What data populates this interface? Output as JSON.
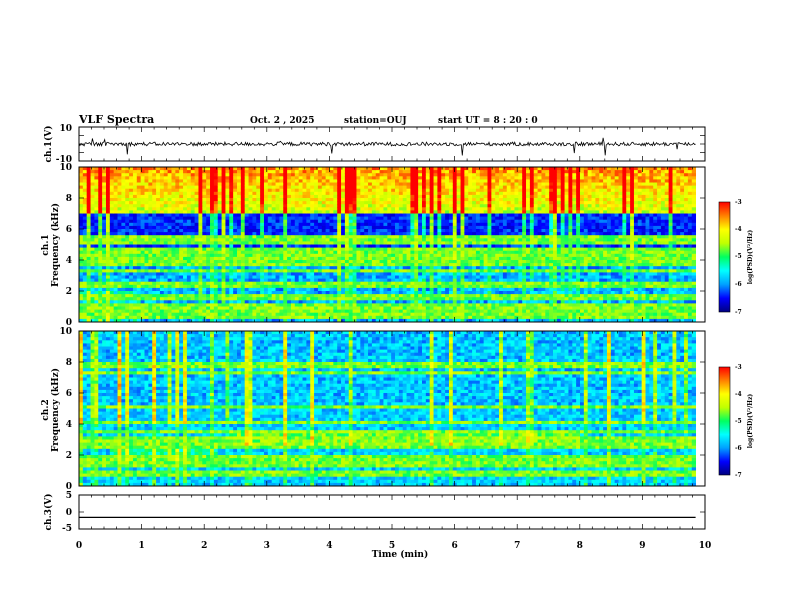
{
  "header": {
    "title": "VLF Spectra",
    "date": "Oct. 2 , 2025",
    "station": "station=OUJ",
    "start": "start  UT =  8 : 20 : 0"
  },
  "chart_data": {
    "type": "heatmap",
    "title": "VLF Spectra",
    "xlabel": "Time (min)",
    "xlim": [
      0,
      10
    ],
    "x_ticks": [
      "0",
      "1",
      "2",
      "3",
      "4",
      "5",
      "6",
      "7",
      "8",
      "9",
      "10"
    ],
    "panels": [
      {
        "name": "ch1-waveform",
        "type": "line",
        "ylabel": "ch.1(V)",
        "ylim": [
          -10,
          10
        ],
        "y_ticks": [
          "10",
          "-10"
        ],
        "level": 0,
        "data_end_min": 9.85
      },
      {
        "name": "ch1-spectrogram",
        "type": "heatmap",
        "ylabel_line1": "ch.1",
        "ylabel_line2": "Frequency (kHz)",
        "ylim": [
          0,
          10
        ],
        "y_ticks": [
          "0",
          "2",
          "4",
          "6",
          "8",
          "10"
        ],
        "data_end_min": 9.85,
        "colorbar": {
          "label": "log(PSD)(V²/Hz)",
          "range": [
            -7,
            -3
          ],
          "ticks": [
            "-3",
            "-4",
            "-5",
            "-6",
            "-7"
          ]
        }
      },
      {
        "name": "ch2-spectrogram",
        "type": "heatmap",
        "ylabel_line1": "ch.2",
        "ylabel_line2": "Frequency (kHz)",
        "ylim": [
          0,
          10
        ],
        "y_ticks": [
          "0",
          "2",
          "4",
          "6",
          "8",
          "10"
        ],
        "data_end_min": 9.85,
        "colorbar": {
          "label": "log(PSD)(V²/Hz)",
          "range": [
            -7,
            -3
          ],
          "ticks": [
            "-3",
            "-4",
            "-5",
            "-6",
            "-7"
          ]
        }
      },
      {
        "name": "ch3-waveform",
        "type": "line",
        "ylabel": "ch.3(V)",
        "ylim": [
          -5,
          5
        ],
        "y_ticks": [
          "5",
          "0",
          "-5"
        ],
        "level": -1.6,
        "data_end_min": 9.85
      }
    ]
  },
  "colors": {
    "colormap": [
      "#000080",
      "#0000ff",
      "#00a0ff",
      "#00ffff",
      "#00ff60",
      "#c0ff00",
      "#ffff00",
      "#ff8000",
      "#ff0000"
    ],
    "axis": "#000000",
    "trace": "#000000",
    "background": "#ffffff"
  }
}
